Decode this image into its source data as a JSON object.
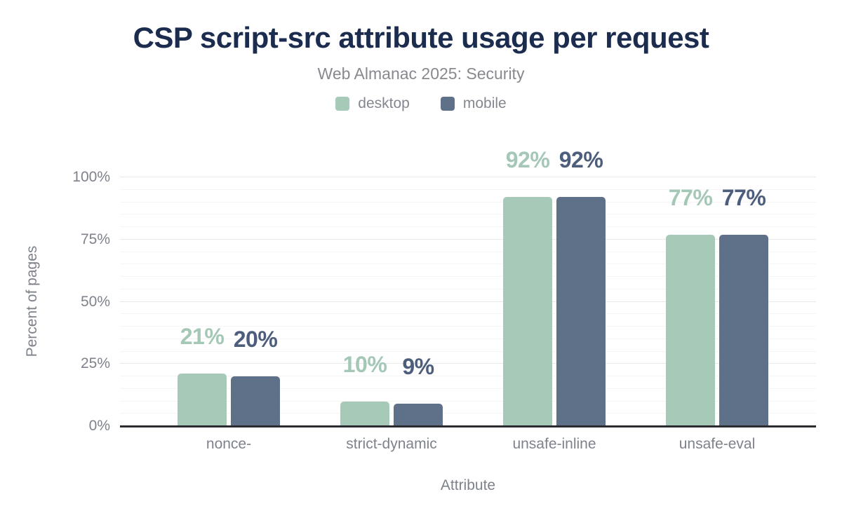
{
  "chart_data": {
    "type": "bar",
    "title": "CSP script-src attribute usage per request",
    "subtitle": "Web Almanac 2025: Security",
    "categories": [
      "nonce-",
      "strict-dynamic",
      "unsafe-inline",
      "unsafe-eval"
    ],
    "series": [
      {
        "name": "desktop",
        "color": "#a7c9b8",
        "label_color": "#a5c7b6",
        "values": [
          21,
          10,
          92,
          77
        ]
      },
      {
        "name": "mobile",
        "color": "#5f7089",
        "label_color": "#4d5d7c",
        "values": [
          20,
          9,
          92,
          77
        ]
      }
    ],
    "value_label_format": "{v}%",
    "xlabel": "Attribute",
    "ylabel": "Percent of pages",
    "ylim": [
      0,
      100
    ],
    "yticks": [
      0,
      25,
      50,
      75,
      100
    ],
    "ytick_suffix": "%",
    "grid": {
      "minor_step": 5,
      "major_step": 25,
      "minor_color": "#f5f5f5",
      "major_color": "#e9e9e9"
    },
    "legend_position": "top",
    "colors": {
      "title": "#1b2c4e",
      "subtitle": "#87898f",
      "axis_text": "#7e828b",
      "axis_line": "#2b2c30",
      "background": "#ffffff"
    }
  }
}
